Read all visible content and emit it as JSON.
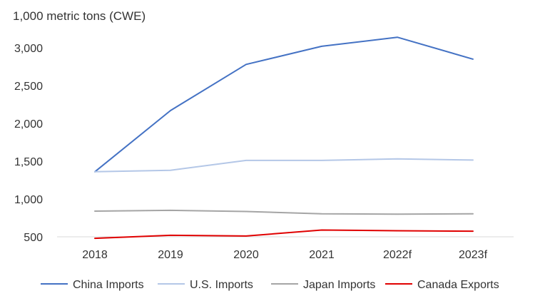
{
  "chart_data": {
    "type": "line",
    "title": "",
    "ylabel": "1,000 metric tons (CWE)",
    "xlabel": "",
    "categories": [
      "2018",
      "2019",
      "2020",
      "2021",
      "2022f",
      "2023f"
    ],
    "ylim": [
      500,
      3000
    ],
    "yticks": [
      500,
      1000,
      1500,
      2000,
      2500,
      3000
    ],
    "ytick_labels": [
      "500",
      "1,000",
      "1,500",
      "2,000",
      "2,500",
      "3,000"
    ],
    "grid": false,
    "legend_position": "bottom",
    "series": [
      {
        "name": "China Imports",
        "color": "#4472C4",
        "values": [
          1360,
          2170,
          2780,
          3020,
          3140,
          2850
        ]
      },
      {
        "name": "U.S. Imports",
        "color": "#B4C7E7",
        "values": [
          1360,
          1380,
          1510,
          1510,
          1530,
          1515
        ]
      },
      {
        "name": "Japan Imports",
        "color": "#A5A5A5",
        "values": [
          840,
          850,
          835,
          805,
          800,
          805
        ]
      },
      {
        "name": "Canada Exports",
        "color": "#E00000",
        "values": [
          480,
          520,
          510,
          590,
          580,
          575
        ]
      }
    ]
  }
}
